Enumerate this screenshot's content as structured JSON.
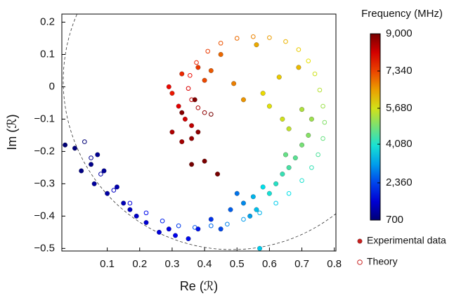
{
  "chart_data": {
    "type": "scatter",
    "xlabel": "Re (ℛ)",
    "ylabel": "Im (ℛ)",
    "xlim": [
      -0.04,
      0.805
    ],
    "ylim": [
      -0.508,
      0.225
    ],
    "xticks": [
      0.1,
      0.2,
      0.3,
      0.4,
      0.5,
      0.6,
      0.7,
      0.8
    ],
    "yticks": [
      {
        "value": -0.5,
        "label": "−0.5"
      },
      {
        "value": -0.4,
        "label": "−0.4"
      },
      {
        "value": -0.3,
        "label": "−0.3"
      },
      {
        "value": -0.2,
        "label": "−0.2"
      },
      {
        "value": -0.1,
        "label": "−0.1"
      },
      0,
      0.1,
      0.2
    ],
    "legend_color": "#c8201f",
    "series": [
      {
        "name": "Experimental data",
        "marker": "filled",
        "x": [
          -0.03,
          0.0,
          0.02,
          0.05,
          0.07,
          0.09,
          0.06,
          0.1,
          0.13,
          0.15,
          0.17,
          0.19,
          0.22,
          0.26,
          0.29,
          0.31,
          0.35,
          0.38,
          0.42,
          0.45,
          0.48,
          0.5,
          0.52,
          0.54,
          0.55,
          0.56,
          0.57,
          0.58,
          0.6,
          0.62,
          0.64,
          0.66,
          0.68,
          0.65,
          0.7,
          0.72,
          0.73,
          0.7,
          0.66,
          0.64,
          0.6,
          0.58,
          0.63,
          0.69,
          0.56,
          0.52,
          0.49,
          0.45,
          0.42,
          0.4,
          0.38,
          0.33,
          0.3,
          0.29,
          0.32,
          0.34,
          0.36,
          0.3,
          0.33,
          0.36,
          0.38,
          0.33,
          0.37,
          0.4,
          0.44,
          0.36
        ],
        "y": [
          -0.18,
          -0.19,
          -0.26,
          -0.24,
          -0.21,
          -0.26,
          -0.3,
          -0.33,
          -0.31,
          -0.36,
          -0.38,
          -0.4,
          -0.42,
          -0.45,
          -0.44,
          -0.46,
          -0.47,
          -0.44,
          -0.41,
          -0.44,
          -0.38,
          -0.33,
          -0.36,
          -0.4,
          -0.34,
          -0.38,
          -0.5,
          -0.31,
          -0.33,
          -0.3,
          -0.27,
          -0.25,
          -0.22,
          -0.21,
          -0.18,
          -0.15,
          -0.1,
          -0.07,
          -0.13,
          -0.1,
          -0.06,
          -0.02,
          0.03,
          0.06,
          0.13,
          -0.04,
          0.01,
          0.1,
          0.05,
          0.02,
          0.06,
          0.04,
          -0.02,
          0.0,
          -0.06,
          -0.1,
          -0.12,
          -0.14,
          -0.17,
          -0.16,
          -0.14,
          -0.08,
          -0.04,
          -0.23,
          -0.27,
          -0.24
        ],
        "frequency": [
          700,
          760,
          820,
          880,
          940,
          1000,
          1060,
          1120,
          1200,
          1280,
          1360,
          1440,
          1520,
          1600,
          1680,
          1760,
          1840,
          1920,
          2200,
          2400,
          2600,
          2800,
          3000,
          3200,
          3400,
          3500,
          3600,
          3800,
          4000,
          4150,
          4300,
          4450,
          4600,
          4700,
          4850,
          5000,
          5200,
          5350,
          5500,
          5650,
          5800,
          5950,
          6100,
          6250,
          6400,
          6600,
          6800,
          7000,
          7150,
          7300,
          7450,
          7600,
          7750,
          7900,
          8050,
          8200,
          8350,
          8500,
          8600,
          8700,
          8800,
          8850,
          8900,
          8950,
          8980,
          9000
        ]
      },
      {
        "name": "Theory",
        "marker": "open",
        "x": [
          0.03,
          0.05,
          0.08,
          0.12,
          0.17,
          0.22,
          0.27,
          0.32,
          0.37,
          0.42,
          0.47,
          0.52,
          0.57,
          0.62,
          0.66,
          0.7,
          0.73,
          0.75,
          0.765,
          0.77,
          0.765,
          0.755,
          0.74,
          0.72,
          0.69,
          0.65,
          0.6,
          0.55,
          0.5,
          0.45,
          0.41,
          0.375,
          0.355,
          0.35,
          0.36,
          0.38,
          0.4,
          0.42
        ],
        "y": [
          -0.17,
          -0.22,
          -0.27,
          -0.32,
          -0.36,
          -0.39,
          -0.415,
          -0.43,
          -0.435,
          -0.43,
          -0.425,
          -0.41,
          -0.39,
          -0.36,
          -0.33,
          -0.29,
          -0.25,
          -0.21,
          -0.16,
          -0.11,
          -0.06,
          -0.01,
          0.04,
          0.08,
          0.115,
          0.14,
          0.152,
          0.155,
          0.15,
          0.135,
          0.11,
          0.075,
          0.035,
          -0.005,
          -0.04,
          -0.065,
          -0.08,
          -0.085
        ],
        "frequency": [
          700,
          924,
          1149,
          1373,
          1597,
          1822,
          2046,
          2270,
          2495,
          2719,
          2943,
          3168,
          3392,
          3616,
          3841,
          4065,
          4289,
          4514,
          4738,
          4962,
          5186,
          5411,
          5635,
          5859,
          6084,
          6308,
          6532,
          6757,
          6981,
          7205,
          7430,
          7654,
          7878,
          8103,
          8327,
          8551,
          8776,
          9000
        ]
      }
    ],
    "colorbar": {
      "title": "Frequency (MHz)",
      "colormap": "jet",
      "lim": [
        700,
        9000
      ],
      "ticks": [
        700,
        {
          "value": 2360,
          "label": "2,360"
        },
        {
          "value": 4080,
          "label": "4,080"
        },
        {
          "value": 5680,
          "label": "5,680"
        },
        {
          "value": 7340,
          "label": "7,340"
        },
        {
          "value": 9000,
          "label": "9,000"
        }
      ]
    }
  }
}
